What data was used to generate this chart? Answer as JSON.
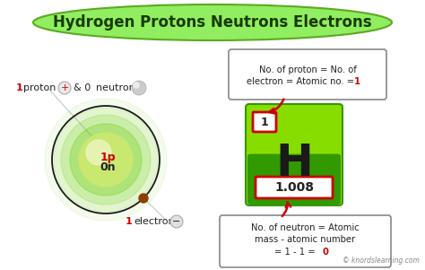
{
  "title": "Hydrogen Protons Neutrons Electrons",
  "title_bg": "#90ee60",
  "title_bg_edge": "#5aaa20",
  "title_color": "#1a3a00",
  "bg_color": "#ffffff",
  "nucleus_text1": "1p",
  "nucleus_text2": "0n",
  "element_symbol": "H",
  "atomic_number": "1",
  "atomic_mass": "1.008",
  "box1_text": "No. of proton = No. of\nelectron = Atomic no. = 1",
  "box2_text": "No. of neutron = Atomic\nmass - atomic number\n= 1 - 1 = 0",
  "watermark": "© knordslearning.com",
  "arrow_color": "#cc0000",
  "red_box_color": "#cc0000",
  "nucleus_color_outer": "#c8e870",
  "nucleus_color_inner": "#eef5c0",
  "orbit_color": "#1a1a1a",
  "electron_dot_color": "#8B4000",
  "neutron_sphere_color": "#cccccc",
  "neutron_sphere_edge": "#aaaaaa",
  "label_red_color": "#cc0000",
  "label_black_color": "#222222",
  "plus_circle_color": "#e8e8e8",
  "minus_circle_color": "#e0e0e0",
  "glow_color": "#66cc00",
  "card_green_light": "#88dd00",
  "card_green_dark": "#339900",
  "box_edge_color": "#888888",
  "box1_last_color": "#cc0000",
  "box2_last_color": "#cc0000"
}
